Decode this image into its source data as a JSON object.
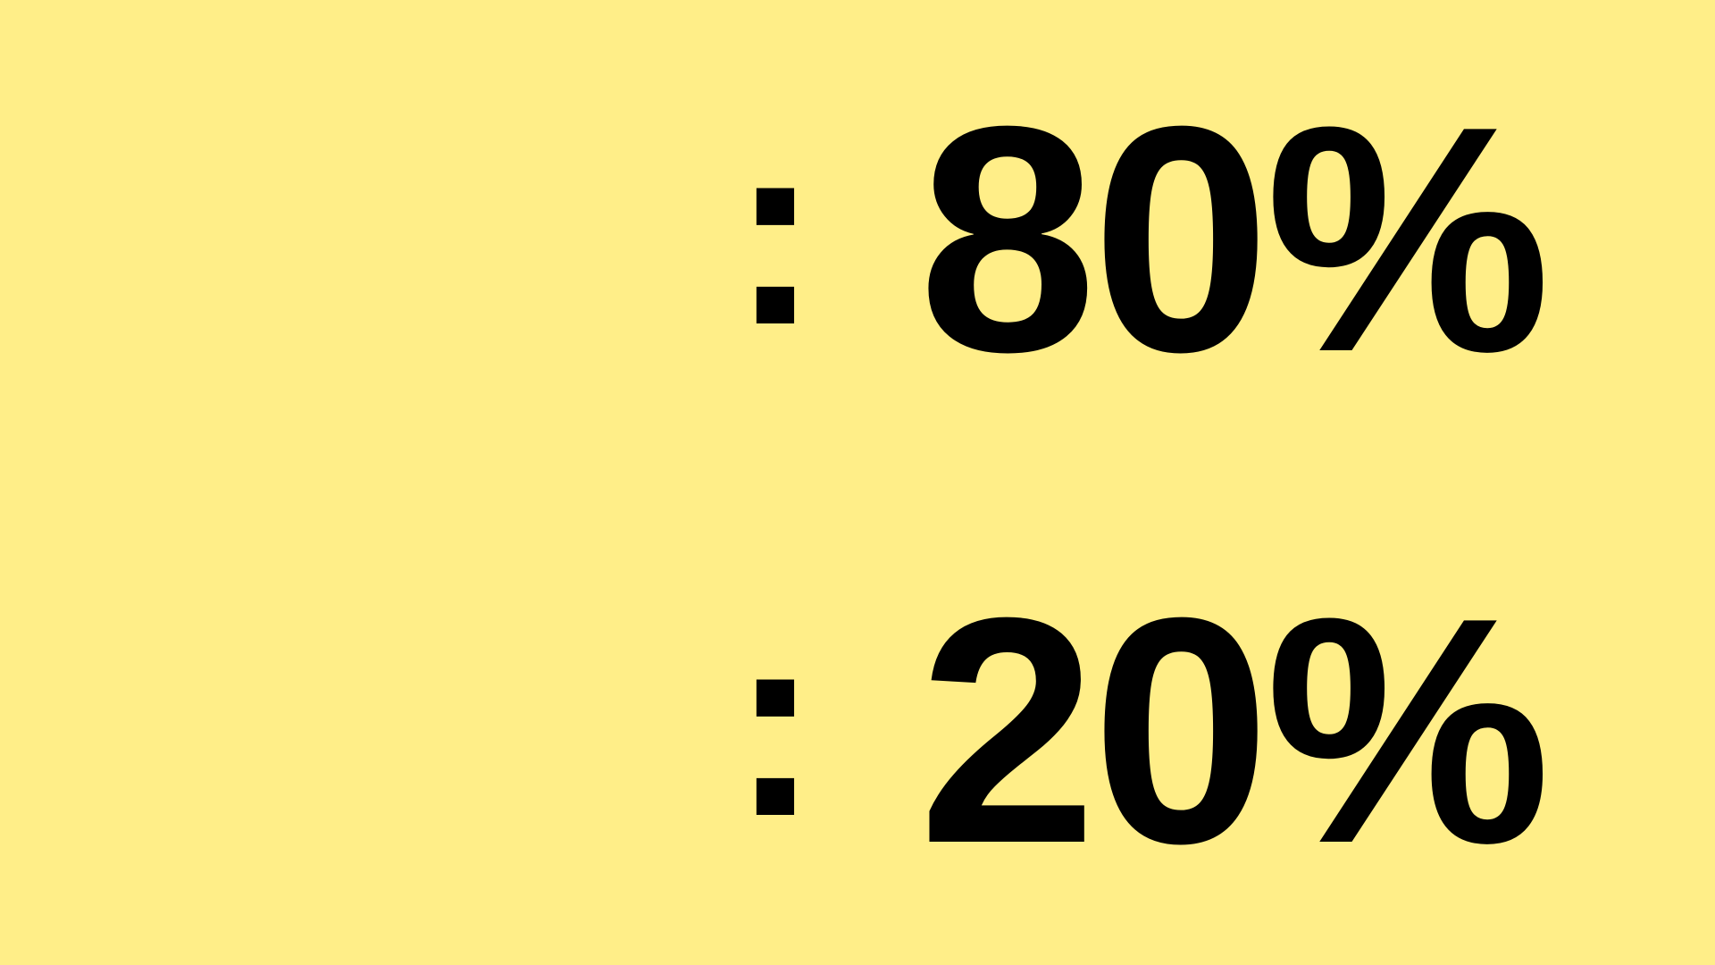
{
  "rows": [
    {
      "separator": ":",
      "value": "80%"
    },
    {
      "separator": ":",
      "value": "20%"
    }
  ],
  "colors": {
    "background": "#FFEE88",
    "text": "#000000"
  }
}
